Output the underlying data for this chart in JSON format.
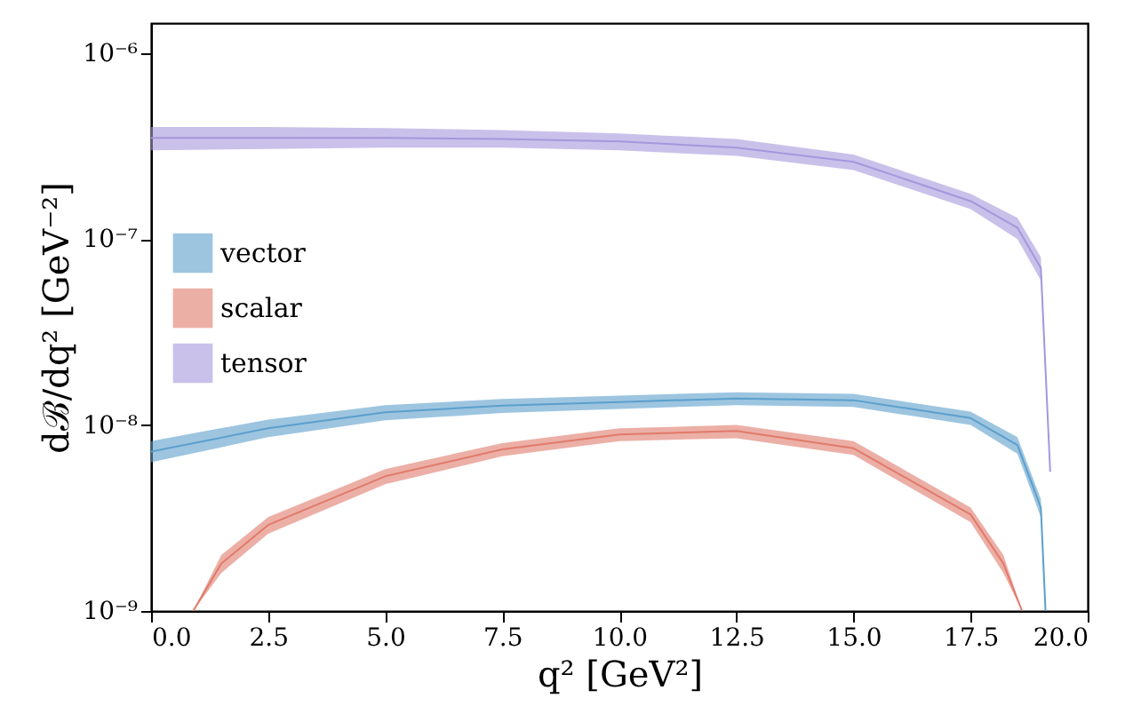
{
  "chart_data": {
    "type": "line",
    "xlabel": "q² [GeV²]",
    "ylabel": "dℬ/dq² [GeV⁻²]",
    "log": "y",
    "xlim": [
      0,
      20
    ],
    "xticks": [
      {
        "value": 0,
        "label": "0.0"
      },
      {
        "value": 2.5,
        "label": "2.5"
      },
      {
        "value": 5,
        "label": "5.0"
      },
      {
        "value": 7.5,
        "label": "7.5"
      },
      {
        "value": 10,
        "label": "10.0"
      },
      {
        "value": 12.5,
        "label": "12.5"
      },
      {
        "value": 15,
        "label": "15.0"
      },
      {
        "value": 17.5,
        "label": "17.5"
      },
      {
        "value": 20,
        "label": "20.0"
      }
    ],
    "ylim": [
      1e-09,
      1.45e-06
    ],
    "yticks": [
      {
        "value": 1e-09,
        "label": "10⁻⁹"
      },
      {
        "value": 1e-08,
        "label": "10⁻⁸"
      },
      {
        "value": 1e-07,
        "label": "10⁻⁷"
      },
      {
        "value": 1e-06,
        "label": "10⁻⁶"
      }
    ],
    "grid": false,
    "legend": "left",
    "series": [
      {
        "name": "vector",
        "color": "#5b9fcc",
        "x": [
          0,
          2.5,
          5,
          7.5,
          10,
          12.5,
          15,
          17.5,
          18.5,
          19,
          19.1
        ],
        "values": [
          7.2e-09,
          9.6e-09,
          1.17e-08,
          1.27e-08,
          1.33e-08,
          1.39e-08,
          1.36e-08,
          1.09e-08,
          7.8e-09,
          3.6e-09,
          1e-09
        ],
        "lower": [
          6.3e-09,
          8.6e-09,
          1.06e-08,
          1.16e-08,
          1.22e-08,
          1.28e-08,
          1.25e-08,
          1e-08,
          7e-09,
          3.2e-09,
          1e-09
        ],
        "upper": [
          8.2e-09,
          1.07e-08,
          1.28e-08,
          1.38e-08,
          1.44e-08,
          1.5e-08,
          1.47e-08,
          1.18e-08,
          8.6e-09,
          4e-09,
          1e-09
        ]
      },
      {
        "name": "scalar",
        "color": "#e07a6b",
        "x": [
          0.9,
          1.5,
          2.5,
          5,
          7.5,
          10,
          12.5,
          15,
          17.5,
          18.2,
          18.6
        ],
        "values": [
          1e-09,
          1.8e-09,
          2.9e-09,
          5.3e-09,
          7.4e-09,
          8.9e-09,
          9.3e-09,
          7.5e-09,
          3.3e-09,
          1.8e-09,
          1e-09
        ],
        "lower": [
          1e-09,
          1.6e-09,
          2.6e-09,
          4.8e-09,
          6.8e-09,
          8.2e-09,
          8.5e-09,
          6.9e-09,
          3e-09,
          1.6e-09,
          1e-09
        ],
        "upper": [
          1e-09,
          2e-09,
          3.2e-09,
          5.8e-09,
          8e-09,
          9.6e-09,
          1e-08,
          8.2e-09,
          3.6e-09,
          2e-09,
          1e-09
        ]
      },
      {
        "name": "tensor",
        "color": "#a597dc",
        "x": [
          0,
          2.5,
          5,
          7.5,
          10,
          12.5,
          15,
          17.5,
          18.5,
          19,
          19.2
        ],
        "values": [
          3.5e-07,
          3.5e-07,
          3.5e-07,
          3.45e-07,
          3.35e-07,
          3.1e-07,
          2.6e-07,
          1.6e-07,
          1.15e-07,
          7e-08,
          5.6e-09
        ],
        "lower": [
          3e-07,
          3.05e-07,
          3.1e-07,
          3.1e-07,
          3e-07,
          2.8e-07,
          2.35e-07,
          1.45e-07,
          1e-07,
          6e-08,
          5.6e-09
        ],
        "upper": [
          4e-07,
          4e-07,
          3.95e-07,
          3.85e-07,
          3.7e-07,
          3.45e-07,
          2.85e-07,
          1.75e-07,
          1.3e-07,
          8e-08,
          5.6e-09
        ]
      }
    ]
  }
}
